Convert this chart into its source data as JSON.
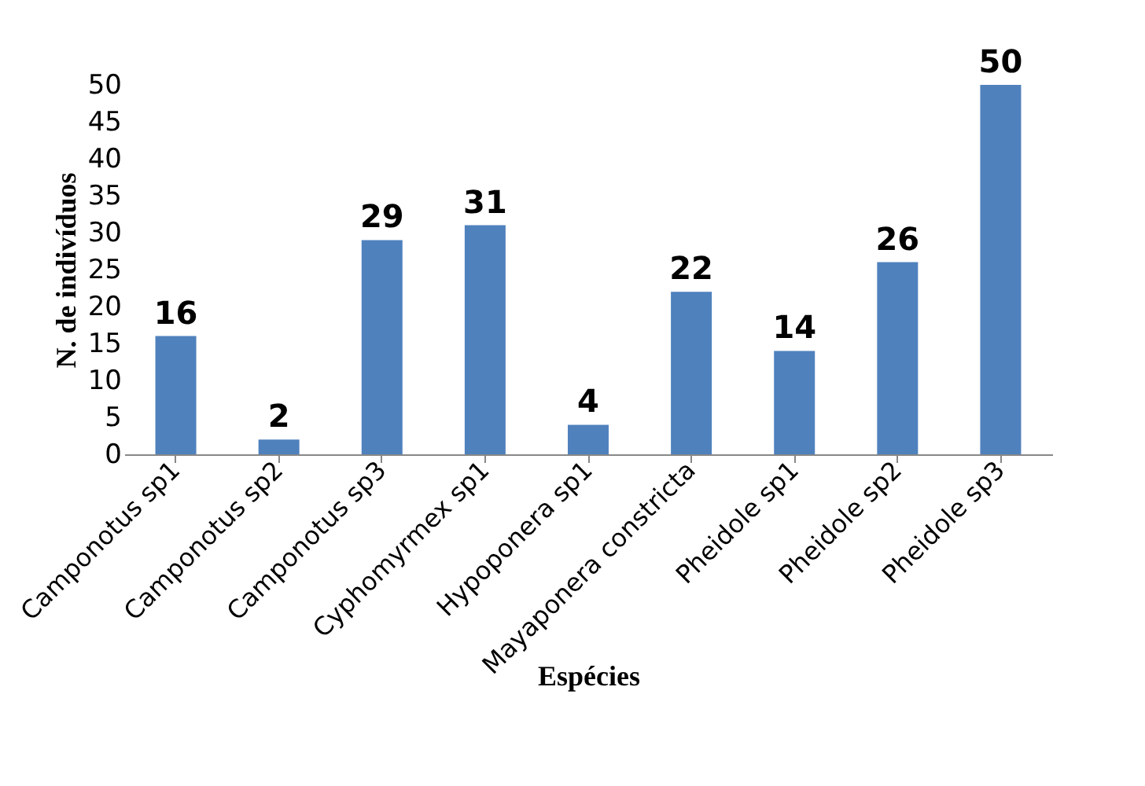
{
  "chart_data": {
    "type": "bar",
    "xlabel": "Espécies",
    "ylabel": "N. de indivíduos",
    "categories": [
      "Camponotus sp1",
      "Camponotus sp2",
      "Camponotus sp3",
      "Cyphomyrmex sp1",
      "Hypoponera sp1",
      "Mayaponera constricta",
      "Pheidole sp1",
      "Pheidole sp2",
      "Pheidole sp3"
    ],
    "values": [
      16,
      2,
      29,
      31,
      4,
      22,
      14,
      26,
      50
    ],
    "color": "#4f81bd",
    "ylim": [
      0,
      50
    ],
    "yticks": [
      0,
      5,
      10,
      15,
      20,
      25,
      30,
      35,
      40,
      45,
      50
    ],
    "grid": false,
    "data_labels": true
  }
}
